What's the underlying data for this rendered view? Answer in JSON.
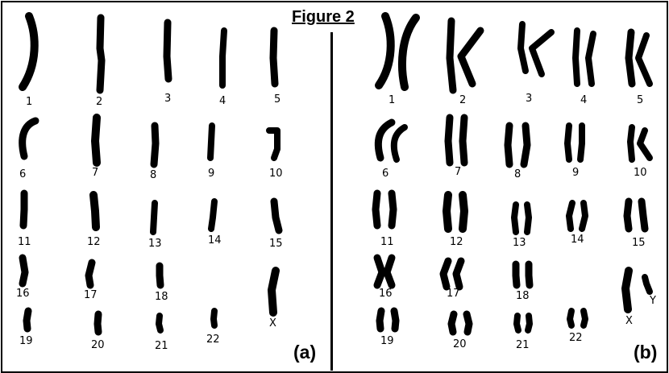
{
  "figure_title": "Figure 2",
  "panel_a": {
    "label": "(a)",
    "chromosomes": [
      "1",
      "2",
      "3",
      "4",
      "5",
      "6",
      "7",
      "8",
      "9",
      "10",
      "11",
      "12",
      "13",
      "14",
      "15",
      "16",
      "17",
      "18",
      "19",
      "20",
      "21",
      "22",
      "X"
    ]
  },
  "panel_b": {
    "label": "(b)",
    "chromosomes": [
      "1",
      "2",
      "3",
      "4",
      "5",
      "6",
      "7",
      "8",
      "9",
      "10",
      "11",
      "12",
      "13",
      "14",
      "15",
      "16",
      "17",
      "18",
      "19",
      "20",
      "21",
      "22",
      "X",
      "Y"
    ]
  }
}
